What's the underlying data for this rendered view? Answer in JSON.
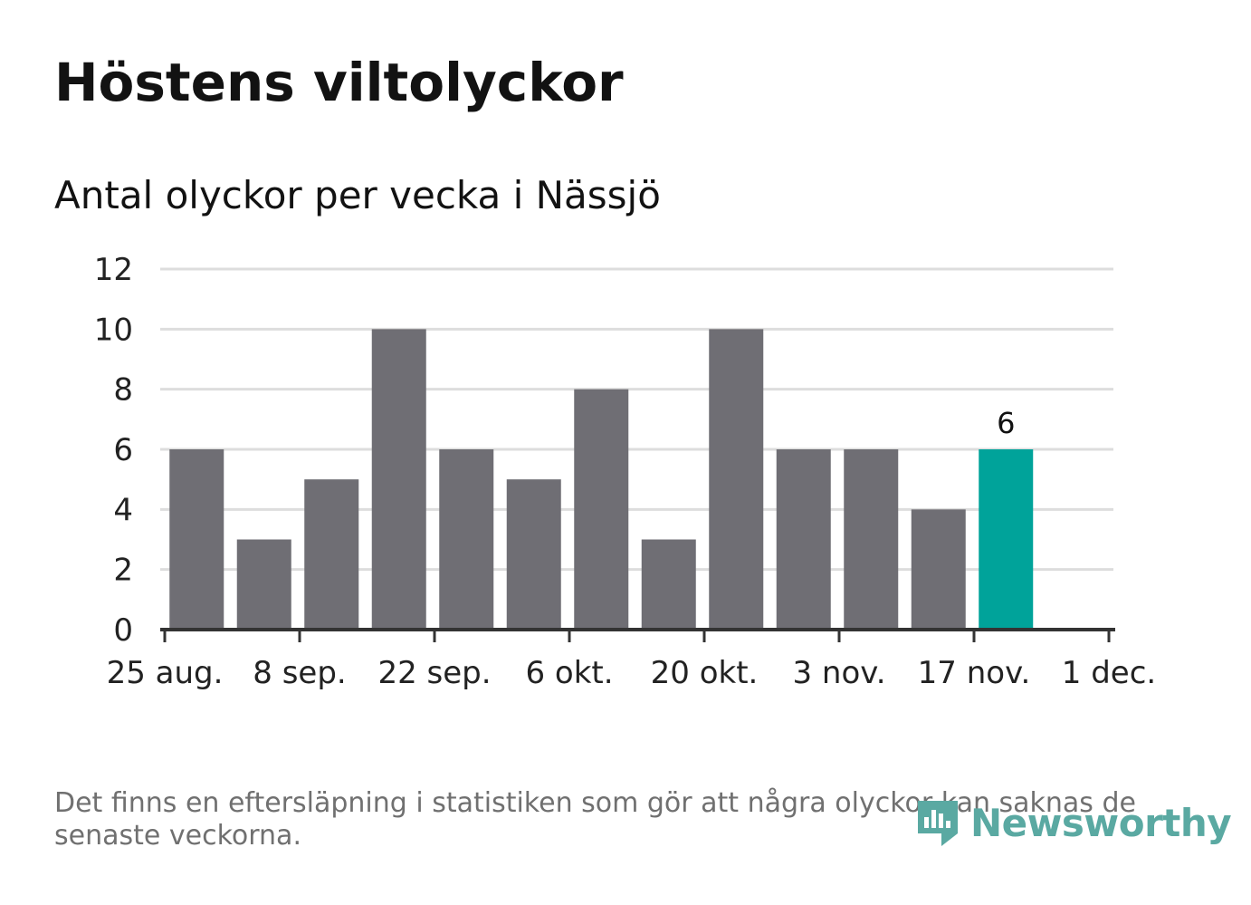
{
  "title": "Höstens viltolyckor",
  "subtitle": "Antal olyckor per vecka i Nässjö",
  "footnote": "Det finns en eftersläpning i statistiken som gör att några olyckor kan saknas de senaste veckorna.",
  "logo": {
    "text": "Newsworthy",
    "icon": "newsworthy-logo-icon"
  },
  "colors": {
    "bar": "#6f6e74",
    "highlight": "#00a39a",
    "grid": "#dddddd",
    "axis": "#333333",
    "logo": "#5aa9a2"
  },
  "chart_data": {
    "type": "bar",
    "x_axis": {
      "tick_labels": [
        "25 aug.",
        "8 sep.",
        "22 sep.",
        "6 okt.",
        "20 okt.",
        "3 nov.",
        "17 nov.",
        "1 dec."
      ]
    },
    "y_axis": {
      "ticks": [
        0,
        2,
        4,
        6,
        8,
        10,
        12
      ],
      "ylim": [
        0,
        12
      ]
    },
    "weeks_start": "2025-08-25",
    "values": [
      6,
      3,
      5,
      10,
      6,
      5,
      8,
      3,
      10,
      6,
      6,
      4,
      6
    ],
    "highlight_index": 12,
    "data_labels": [
      {
        "index": 12,
        "text": "6"
      }
    ],
    "grid": true,
    "legend": "none"
  }
}
